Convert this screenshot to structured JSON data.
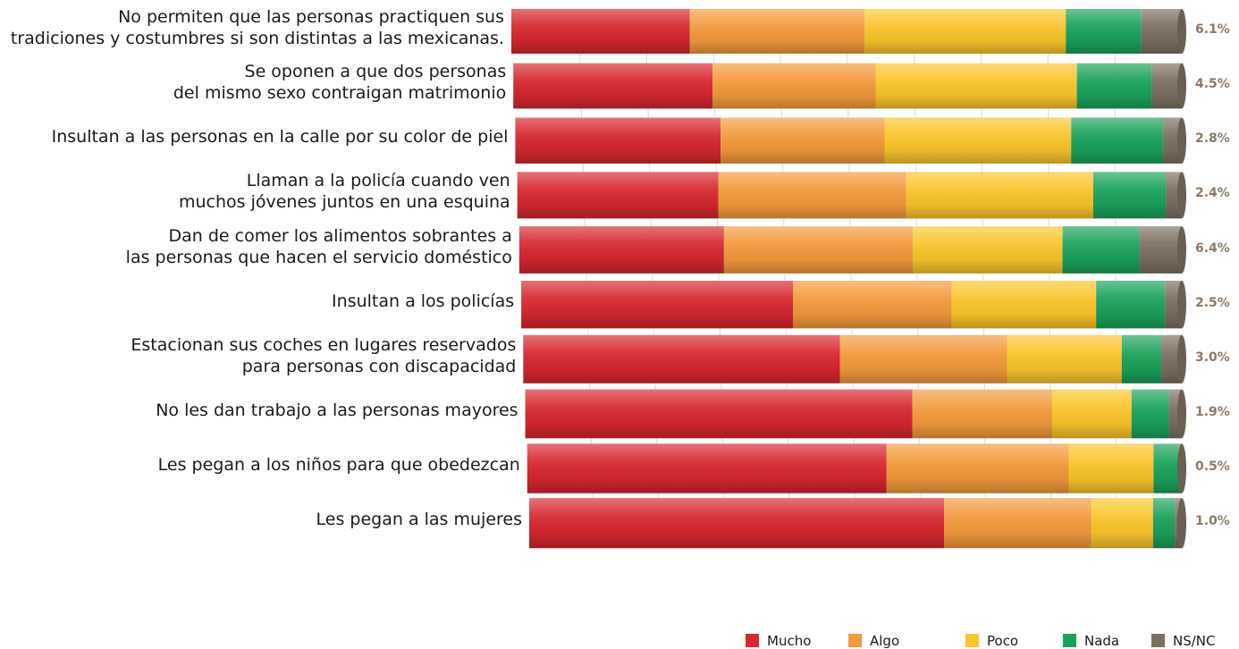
{
  "chart_data": {
    "type": "bar",
    "stacked": true,
    "orientation": "horizontal",
    "percent_stacked": true,
    "categories": [
      "No permiten que las personas practiquen sus\ntradiciones y costumbres si son distintas a las mexicanas.",
      "Se oponen a que dos personas\ndel mismo sexo contraigan matrimonio",
      "Insultan a las personas en la calle por su color de piel",
      "Llaman a la policía cuando ven\nmuchos  jóvenes juntos en una esquina",
      "Dan de comer los alimentos sobrantes a\nlas personas que hacen el servicio doméstico",
      "Insultan a los policías",
      "Estacionan sus coches en lugares reservados\npara personas con discapacidad",
      "No les dan trabajo a las personas mayores",
      "Les pegan a los niños para que obedezcan",
      "Les pegan a las mujeres"
    ],
    "series": [
      {
        "name": "Mucho",
        "color": "#d7272f",
        "values": [
          26.6,
          29.8,
          30.8,
          30.2,
          30.9,
          40.3,
          46.4,
          57.0,
          52.1,
          59.2
        ]
      },
      {
        "name": "Algo",
        "color": "#f39a3b",
        "values": [
          26.1,
          24.4,
          24.6,
          28.2,
          28.5,
          23.5,
          24.5,
          20.6,
          26.4,
          21.0
        ]
      },
      {
        "name": "Poco",
        "color": "#fbc52b",
        "values": [
          30.0,
          30.1,
          28.0,
          28.1,
          22.6,
          21.4,
          16.8,
          11.7,
          12.3,
          8.8
        ]
      },
      {
        "name": "Nada",
        "color": "#1aa25b",
        "values": [
          11.2,
          11.2,
          13.8,
          10.9,
          11.6,
          10.2,
          5.8,
          5.5,
          3.6,
          3.1
        ]
      },
      {
        "name": "NS/NC",
        "color": "#7b6f60",
        "values": [
          6.1,
          4.5,
          2.8,
          2.4,
          6.4,
          2.5,
          3.0,
          1.9,
          0.5,
          1.0
        ]
      }
    ],
    "nsnc_labels": [
      "6.1%",
      "4.5%",
      "2.8%",
      "2.4%",
      "6.4%",
      "2.5%",
      "3.0%",
      "1.9%",
      "0.5%",
      "1.0%"
    ],
    "xlim": [
      0,
      100
    ],
    "legend_position": "bottom-right",
    "grid": true
  }
}
